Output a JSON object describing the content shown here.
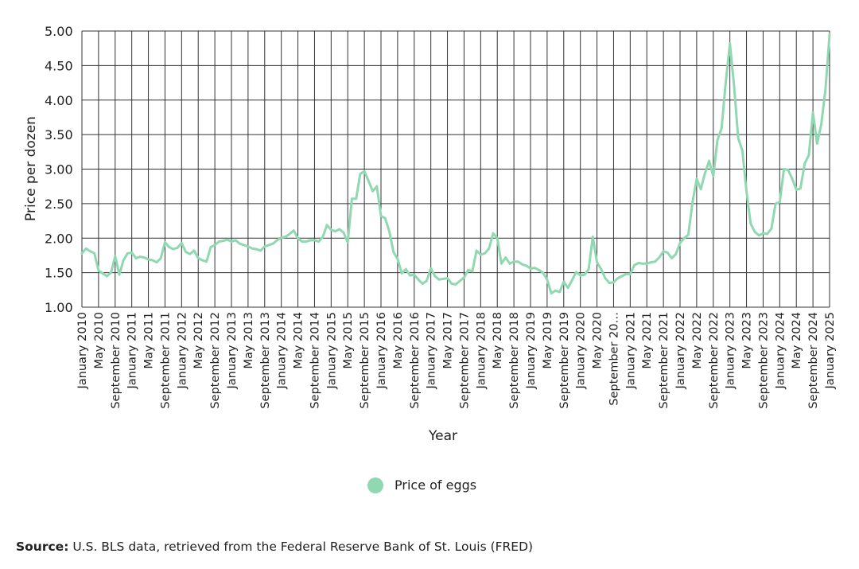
{
  "chart_data": {
    "type": "line",
    "xlabel": "Year",
    "ylabel": "Price per dozen",
    "ylim": [
      1.0,
      5.0
    ],
    "yticks": [
      "1.00",
      "1.50",
      "2.00",
      "2.50",
      "3.00",
      "3.50",
      "4.00",
      "4.50",
      "5.00"
    ],
    "grid": true,
    "line_color": "#90d8b2",
    "legend_position": "bottom-center",
    "x_tick_labels": [
      "January 2010",
      "May 2010",
      "September 2010",
      "January 2011",
      "May 2011",
      "September 2011",
      "January 2012",
      "May 2012",
      "September 2012",
      "January 2013",
      "May 2013",
      "September 2013",
      "January 2014",
      "May 2014",
      "September 2014",
      "January 2015",
      "May 2015",
      "September 2015",
      "January 2016",
      "May 2016",
      "September 2016",
      "January 2017",
      "May 2017",
      "September 2017",
      "January 2018",
      "May 2018",
      "September 2018",
      "January 2019",
      "May 2019",
      "September 2019",
      "January 2020",
      "May 2020",
      "September 20…",
      "January 2021",
      "May 2021",
      "September 2021",
      "January 2022",
      "May 2022",
      "September 2022",
      "January 2023",
      "May 2023",
      "September 2023",
      "January 2024",
      "May 2024",
      "September 2024",
      "January 2025"
    ],
    "series": [
      {
        "name": "Price of eggs",
        "start": "January 2010",
        "frequency": "monthly",
        "values": [
          1.78,
          1.85,
          1.81,
          1.78,
          1.53,
          1.49,
          1.45,
          1.5,
          1.74,
          1.47,
          1.68,
          1.78,
          1.79,
          1.71,
          1.73,
          1.72,
          1.69,
          1.68,
          1.65,
          1.71,
          1.94,
          1.87,
          1.84,
          1.86,
          1.93,
          1.8,
          1.77,
          1.82,
          1.71,
          1.68,
          1.66,
          1.87,
          1.9,
          1.95,
          1.96,
          1.98,
          1.95,
          1.97,
          1.92,
          1.9,
          1.88,
          1.85,
          1.84,
          1.82,
          1.88,
          1.9,
          1.92,
          1.97,
          2.01,
          2.02,
          2.06,
          2.11,
          2.0,
          1.95,
          1.95,
          1.97,
          1.97,
          1.95,
          2.02,
          2.19,
          2.12,
          2.1,
          2.13,
          2.08,
          1.94,
          2.57,
          2.57,
          2.93,
          2.97,
          2.83,
          2.68,
          2.75,
          2.32,
          2.29,
          2.1,
          1.8,
          1.7,
          1.49,
          1.55,
          1.46,
          1.47,
          1.4,
          1.34,
          1.38,
          1.56,
          1.45,
          1.4,
          1.41,
          1.42,
          1.34,
          1.33,
          1.38,
          1.43,
          1.54,
          1.52,
          1.82,
          1.76,
          1.78,
          1.85,
          2.07,
          2.0,
          1.63,
          1.72,
          1.63,
          1.66,
          1.66,
          1.62,
          1.6,
          1.56,
          1.57,
          1.54,
          1.5,
          1.4,
          1.2,
          1.24,
          1.22,
          1.37,
          1.28,
          1.39,
          1.51,
          1.46,
          1.47,
          1.55,
          2.02,
          1.65,
          1.55,
          1.42,
          1.35,
          1.36,
          1.42,
          1.45,
          1.48,
          1.48,
          1.61,
          1.64,
          1.63,
          1.63,
          1.65,
          1.66,
          1.72,
          1.81,
          1.79,
          1.71,
          1.77,
          1.93,
          2.0,
          2.05,
          2.52,
          2.86,
          2.71,
          2.94,
          3.12,
          2.9,
          3.42,
          3.59,
          4.25,
          4.82,
          4.21,
          3.45,
          3.27,
          2.67,
          2.21,
          2.09,
          2.04,
          2.07,
          2.06,
          2.14,
          2.5,
          2.52,
          3.0,
          2.99,
          2.86,
          2.7,
          2.72,
          3.08,
          3.2,
          3.82,
          3.37,
          3.65,
          4.15,
          4.95
        ]
      }
    ]
  },
  "legend": {
    "label": "Price of eggs"
  },
  "source": {
    "label": "Source:",
    "text": "U.S. BLS data, retrieved from the Federal Reserve Bank of St. Louis (FRED)"
  }
}
